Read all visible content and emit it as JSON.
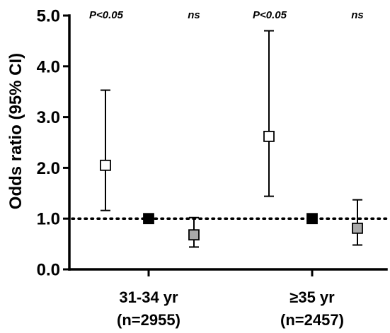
{
  "chart_data": {
    "type": "scatter",
    "title": "",
    "ylabel": "Odds ratio (95% CI)",
    "xlabel": "",
    "ylim": [
      0.0,
      5.0
    ],
    "yticks": [
      {
        "value": 0.0,
        "label": "0.0"
      },
      {
        "value": 1.0,
        "label": "1.0"
      },
      {
        "value": 2.0,
        "label": "2.0"
      },
      {
        "value": 3.0,
        "label": "3.0"
      },
      {
        "value": 4.0,
        "label": "4.0"
      },
      {
        "value": 5.0,
        "label": "5.0"
      }
    ],
    "reference_line": {
      "y": 1.0,
      "style": "dotted"
    },
    "grid": false,
    "groups": [
      {
        "label_line1": "31-34 yr",
        "label_line2": "(n=2955)",
        "points": [
          {
            "position": "left",
            "value": 2.05,
            "ci_low": 1.16,
            "ci_high": 3.53,
            "marker": "open-square",
            "fill": "#ffffff"
          },
          {
            "position": "center",
            "value": 1.0,
            "marker": "filled-square",
            "fill": "#000000"
          },
          {
            "position": "right",
            "value": 0.68,
            "ci_low": 0.44,
            "ci_high": 1.02,
            "marker": "gray-square",
            "fill": "#a9a9a9"
          }
        ],
        "annotations": [
          {
            "position": "left",
            "text": "P<0.05",
            "italic_prefix": "P",
            "rest": "<0.05"
          },
          {
            "position": "right",
            "text": "ns"
          }
        ]
      },
      {
        "label_line1": "≥35 yr",
        "label_line2": "(n=2457)",
        "points": [
          {
            "position": "left",
            "value": 2.62,
            "ci_low": 1.44,
            "ci_high": 4.7,
            "marker": "open-square",
            "fill": "#ffffff"
          },
          {
            "position": "center",
            "value": 1.0,
            "marker": "filled-square",
            "fill": "#000000"
          },
          {
            "position": "right",
            "value": 0.81,
            "ci_low": 0.48,
            "ci_high": 1.37,
            "marker": "gray-square",
            "fill": "#a9a9a9"
          }
        ],
        "annotations": [
          {
            "position": "left",
            "text": "P<0.05",
            "italic_prefix": "P",
            "rest": "<0.05"
          },
          {
            "position": "right",
            "text": "ns"
          }
        ]
      }
    ]
  }
}
